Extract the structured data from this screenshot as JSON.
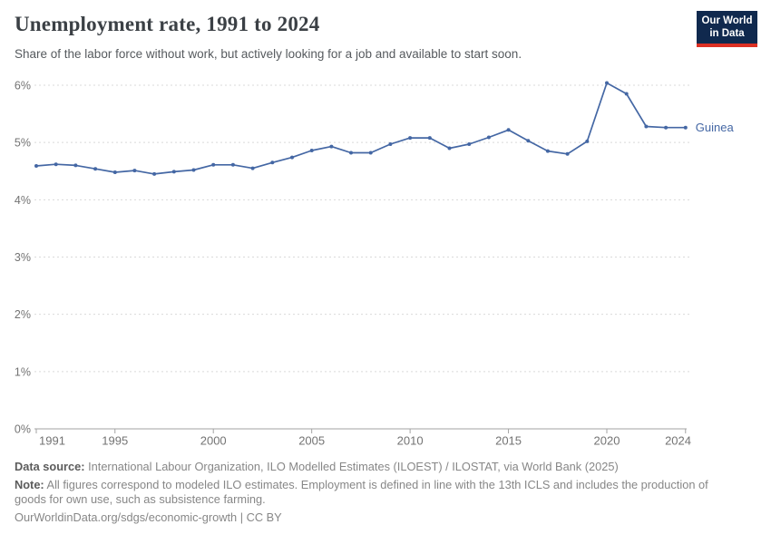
{
  "header": {
    "title": "Unemployment rate, 1991 to 2024",
    "subtitle": "Share of the labor force without work, but actively looking for a job and available to start soon."
  },
  "logo": {
    "line1": "Our World",
    "line2": "in Data",
    "bg_color": "#10294e",
    "bar_color": "#dc3023"
  },
  "chart_data": {
    "type": "line",
    "title": "Unemployment rate, 1991 to 2024",
    "xlabel": "",
    "ylabel": "",
    "x": [
      1991,
      1992,
      1993,
      1994,
      1995,
      1996,
      1997,
      1998,
      1999,
      2000,
      2001,
      2002,
      2003,
      2004,
      2005,
      2006,
      2007,
      2008,
      2009,
      2010,
      2011,
      2012,
      2013,
      2014,
      2015,
      2016,
      2017,
      2018,
      2019,
      2020,
      2021,
      2022,
      2023,
      2024
    ],
    "series": [
      {
        "name": "Guinea",
        "color": "#4467a4",
        "values": [
          4.59,
          4.62,
          4.6,
          4.54,
          4.48,
          4.51,
          4.45,
          4.49,
          4.52,
          4.61,
          4.61,
          4.55,
          4.65,
          4.74,
          4.86,
          4.93,
          4.82,
          4.82,
          4.97,
          5.08,
          5.08,
          4.9,
          4.97,
          5.09,
          5.22,
          5.03,
          4.85,
          4.8,
          5.02,
          6.04,
          5.85,
          5.28,
          5.26,
          5.26
        ]
      }
    ],
    "ylim": [
      0,
      6
    ],
    "yticks": [
      0,
      1,
      2,
      3,
      4,
      5,
      6
    ],
    "ytick_suffix": "%",
    "xticks": [
      1991,
      1995,
      2000,
      2005,
      2010,
      2015,
      2020,
      2024
    ],
    "grid": "horizontal-dashed",
    "legend_position": "end-of-line",
    "end_label": "Guinea",
    "colors": {
      "gridline": "#d9d9d9",
      "axis": "#a3a3a3",
      "tick_text": "#737373"
    }
  },
  "footer": {
    "source_label": "Data source:",
    "source_text": " International Labour Organization, ILO Modelled Estimates (ILOEST) / ILOSTAT, via World Bank (2025)",
    "note_label": "Note:",
    "note_text": " All figures correspond to modeled ILO estimates. Employment is defined in line with the 13th ICLS and includes the production of goods for own use, such as subsistence farming.",
    "url": "OurWorldinData.org/sdgs/economic-growth",
    "separator": " | ",
    "license": "CC BY"
  }
}
